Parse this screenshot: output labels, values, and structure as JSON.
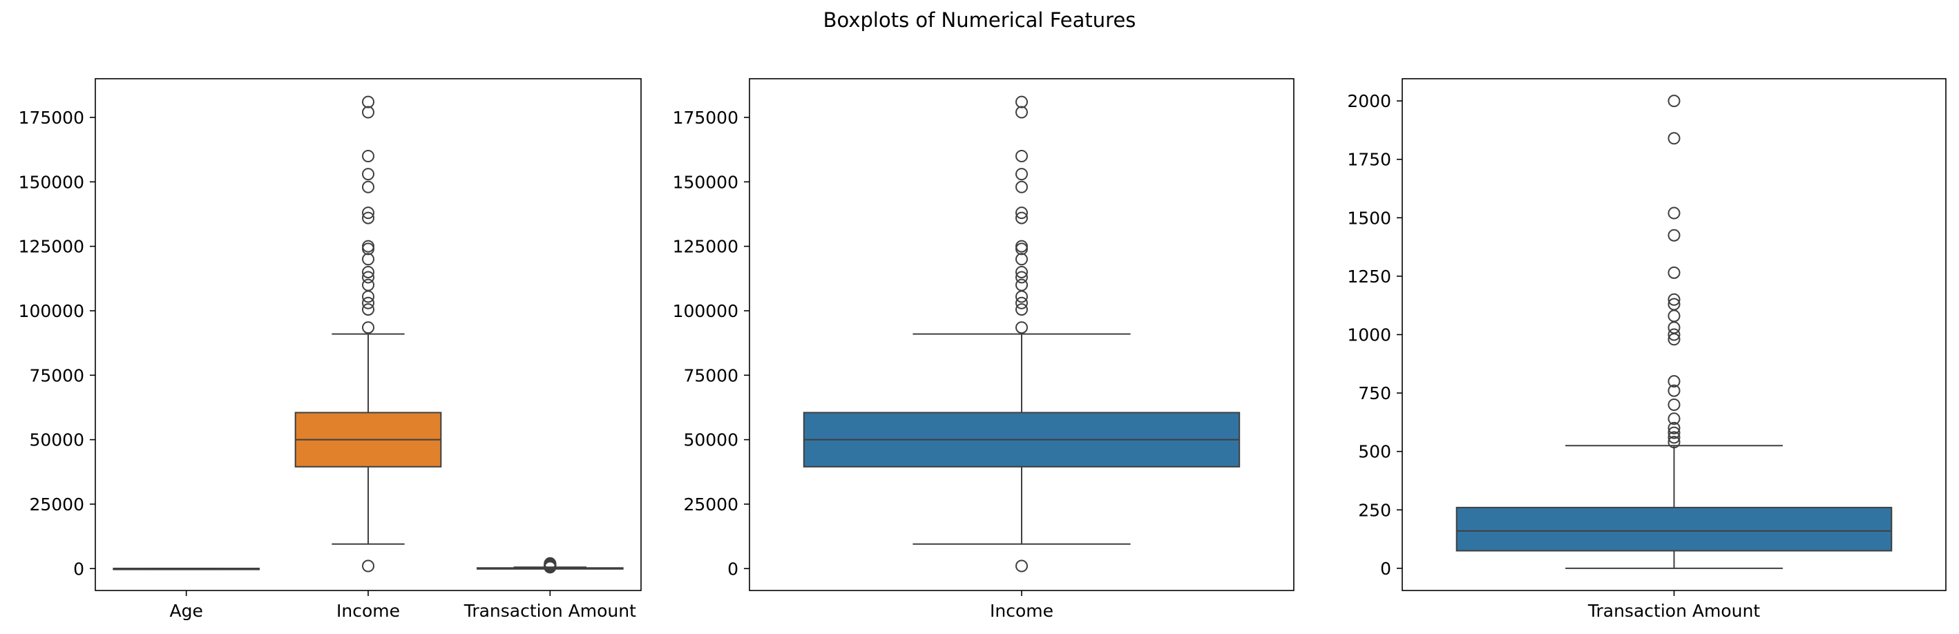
{
  "figure": {
    "title": "Boxplots of Numerical Features"
  },
  "chart_data": [
    {
      "type": "box",
      "ylim": [
        -8500,
        190000
      ],
      "yticks": [
        0,
        25000,
        50000,
        75000,
        100000,
        125000,
        150000,
        175000
      ],
      "categories": [
        "Age",
        "Income",
        "Transaction Amount"
      ],
      "boxes": [
        {
          "name": "Age",
          "color": "#3274a1",
          "q1": 35,
          "median": 45,
          "q3": 55,
          "whisker_low": 18,
          "whisker_high": 80,
          "outliers": []
        },
        {
          "name": "Income",
          "color": "#e1812c",
          "q1": 39500,
          "median": 50000,
          "q3": 60500,
          "whisker_low": 9500,
          "whisker_high": 91000,
          "outliers": [
            1000,
            93500,
            100500,
            103000,
            105500,
            110000,
            113000,
            115000,
            120000,
            124000,
            125000,
            136000,
            138000,
            148000,
            153000,
            160000,
            177000,
            181000
          ]
        },
        {
          "name": "Transaction Amount",
          "color": "#3a923a",
          "q1": 75,
          "median": 160,
          "q3": 260,
          "whisker_low": 0,
          "whisker_high": 525,
          "outliers": [
            540,
            560,
            580,
            600,
            640,
            700,
            760,
            800,
            980,
            1000,
            1030,
            1080,
            1130,
            1150,
            1265,
            1425,
            1520,
            1840,
            2000
          ]
        }
      ]
    },
    {
      "type": "box",
      "ylim": [
        -8500,
        190000
      ],
      "yticks": [
        0,
        25000,
        50000,
        75000,
        100000,
        125000,
        150000,
        175000
      ],
      "categories": [
        "Income"
      ],
      "boxes": [
        {
          "name": "Income",
          "color": "#3274a1",
          "q1": 39500,
          "median": 50000,
          "q3": 60500,
          "whisker_low": 9500,
          "whisker_high": 91000,
          "outliers": [
            1000,
            93500,
            100500,
            103000,
            105500,
            110000,
            113000,
            115000,
            120000,
            124000,
            125000,
            136000,
            138000,
            148000,
            153000,
            160000,
            177000,
            181000
          ]
        }
      ]
    },
    {
      "type": "box",
      "ylim": [
        -95,
        2095
      ],
      "yticks": [
        0,
        250,
        500,
        750,
        1000,
        1250,
        1500,
        1750,
        2000
      ],
      "categories": [
        "Transaction Amount"
      ],
      "boxes": [
        {
          "name": "Transaction Amount",
          "color": "#3274a1",
          "q1": 75,
          "median": 160,
          "q3": 260,
          "whisker_low": 0,
          "whisker_high": 525,
          "outliers": [
            540,
            560,
            580,
            600,
            640,
            700,
            760,
            800,
            980,
            1000,
            1030,
            1080,
            1130,
            1150,
            1265,
            1425,
            1520,
            1840,
            2000
          ]
        }
      ]
    }
  ]
}
